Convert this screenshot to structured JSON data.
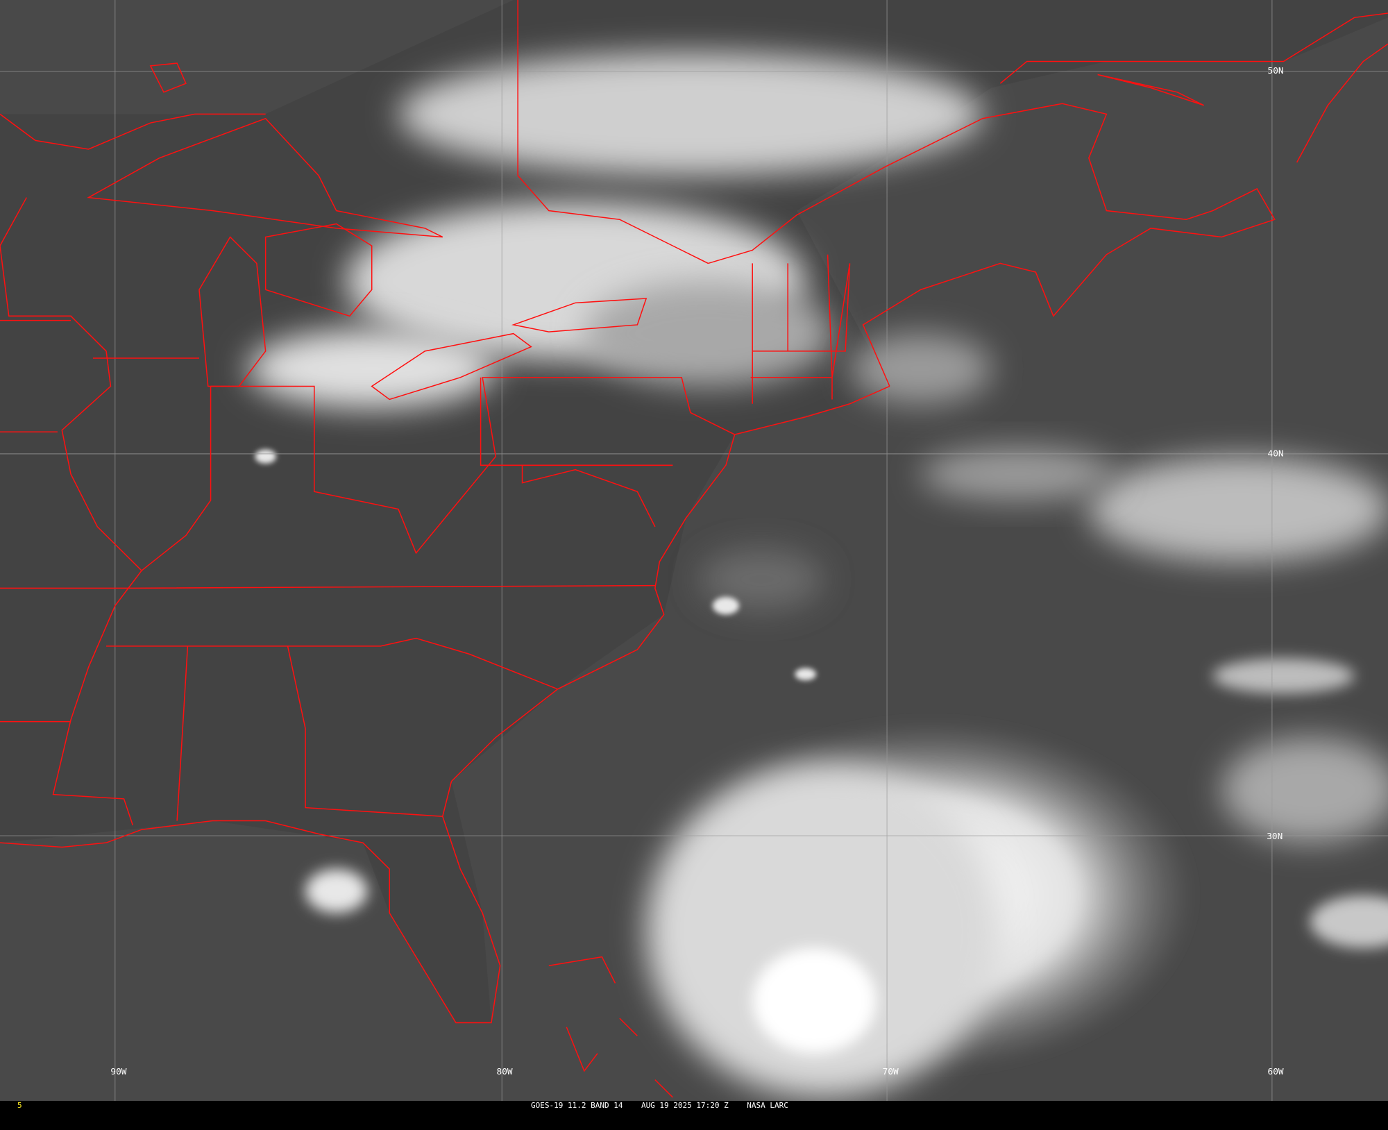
{
  "image": {
    "type": "satellite-infrared",
    "colors": {
      "background": "#4a4a4a",
      "borders": "#ff1010",
      "grid": "#9a9a9a",
      "clouds": "#f0f0f0",
      "frame_number": "#ffee22"
    }
  },
  "grid_labels": {
    "lat": [
      "50N",
      "40N",
      "30N"
    ],
    "lon": [
      "90W",
      "80W",
      "70W",
      "60W"
    ]
  },
  "footer": {
    "frame_number": "5",
    "caption": "GOES-19 11.2 BAND 14    AUG 19 2025 17:20 Z    NASA LARC"
  }
}
